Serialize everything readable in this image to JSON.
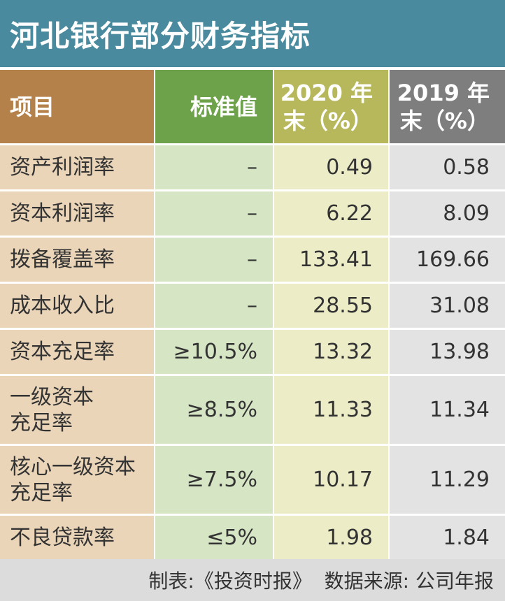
{
  "title": "河北银行部分财务指标",
  "headers": {
    "item": "项目",
    "standard": "标准值",
    "y2020_line1": "2020 年",
    "y2020_line2": "末（%）",
    "y2019_line1": "2019 年",
    "y2019_line2": "末（%）"
  },
  "rows": [
    {
      "item_line1": "资产利润率",
      "item_line2": "",
      "standard": "–",
      "y2020": "0.49",
      "y2019": "0.58"
    },
    {
      "item_line1": "资本利润率",
      "item_line2": "",
      "standard": "–",
      "y2020": "6.22",
      "y2019": "8.09"
    },
    {
      "item_line1": "拨备覆盖率",
      "item_line2": "",
      "standard": "–",
      "y2020": "133.41",
      "y2019": "169.66"
    },
    {
      "item_line1": "成本收入比",
      "item_line2": "",
      "standard": "–",
      "y2020": "28.55",
      "y2019": "31.08"
    },
    {
      "item_line1": "资本充足率",
      "item_line2": "",
      "standard": "≥10.5%",
      "y2020": "13.32",
      "y2019": "13.98"
    },
    {
      "item_line1": "一级资本",
      "item_line2": "充足率",
      "standard": "≥8.5%",
      "y2020": "11.33",
      "y2019": "11.34"
    },
    {
      "item_line1": "核心一级资本",
      "item_line2": "充足率",
      "standard": "≥7.5%",
      "y2020": "10.17",
      "y2019": "11.29"
    },
    {
      "item_line1": "不良贷款率",
      "item_line2": "",
      "standard": "≤5%",
      "y2020": "1.98",
      "y2019": "1.84"
    }
  ],
  "footer": "制表:《投资时报》  数据来源: 公司年报",
  "colors": {
    "title_bg": "#4a8a9e",
    "item_header": "#b5814a",
    "standard_header": "#6da24a",
    "y2020_header": "#b7b75b",
    "y2019_header": "#7e7e7e",
    "item_cell": "#ead5b8",
    "standard_cell": "#d6e6c5",
    "y2020_cell": "#ececc7",
    "y2019_cell": "#e3e3e3",
    "footer_bg": "#dcdcdc"
  }
}
